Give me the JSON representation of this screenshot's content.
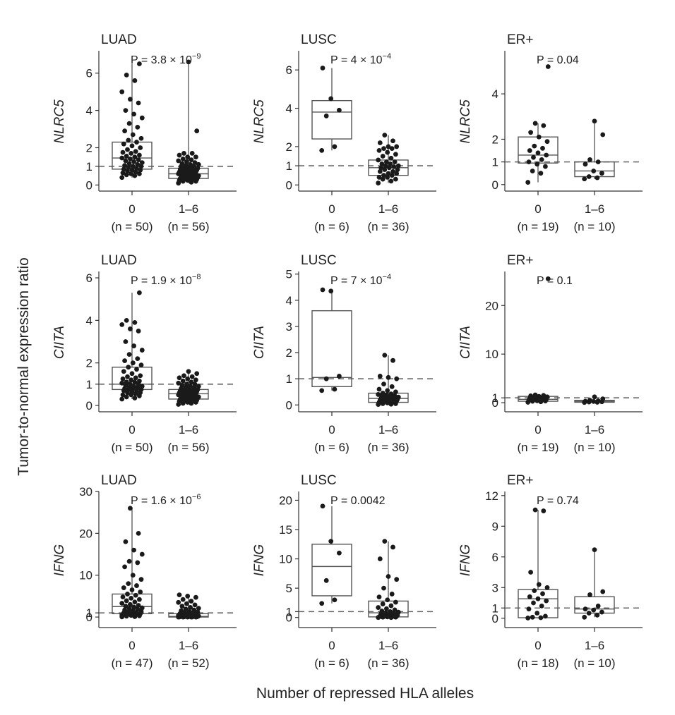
{
  "figure": {
    "y_label": "Tumor-to-normal expression ratio",
    "x_label": "Number of repressed HLA alleles"
  },
  "chart_data": [
    {
      "type": "box",
      "title": "LUAD",
      "ylabel": "NLRC5",
      "p_text": "P = 3.8 × 10",
      "p_exp": "−9",
      "ylim": [
        -0.1,
        7.2
      ],
      "yticks": [
        0,
        1,
        2,
        4,
        6
      ],
      "ref_line": 1,
      "categories": [
        "0",
        "1–6"
      ],
      "n_labels": [
        "(n = 50)",
        "(n = 56)"
      ],
      "boxes": [
        {
          "q1": 0.85,
          "median": 1.45,
          "q3": 2.3,
          "wlo": 0.4,
          "whi": 6.5
        },
        {
          "q1": 0.35,
          "median": 0.6,
          "q3": 0.9,
          "wlo": 0.1,
          "whi": 6.6
        }
      ],
      "points": [
        [
          0.4,
          0.5,
          0.55,
          0.6,
          0.6,
          0.65,
          0.7,
          0.75,
          0.8,
          0.8,
          0.85,
          0.9,
          0.95,
          1.0,
          1.0,
          1.05,
          1.1,
          1.15,
          1.2,
          1.25,
          1.3,
          1.35,
          1.4,
          1.45,
          1.5,
          1.55,
          1.6,
          1.7,
          1.75,
          1.8,
          1.9,
          2.0,
          2.1,
          2.2,
          2.3,
          2.4,
          2.5,
          2.7,
          2.9,
          3.1,
          3.3,
          3.6,
          3.8,
          4.0,
          4.4,
          4.6,
          5.0,
          5.6,
          5.9,
          6.5
        ],
        [
          0.1,
          0.15,
          0.2,
          0.2,
          0.25,
          0.25,
          0.3,
          0.3,
          0.3,
          0.35,
          0.35,
          0.4,
          0.4,
          0.4,
          0.45,
          0.45,
          0.5,
          0.5,
          0.5,
          0.55,
          0.55,
          0.6,
          0.6,
          0.6,
          0.65,
          0.65,
          0.7,
          0.7,
          0.7,
          0.75,
          0.75,
          0.8,
          0.8,
          0.85,
          0.85,
          0.9,
          0.9,
          0.95,
          1.0,
          1.0,
          1.05,
          1.1,
          1.1,
          1.15,
          1.2,
          1.25,
          1.3,
          1.35,
          1.4,
          1.5,
          1.5,
          1.6,
          1.7,
          1.7,
          2.9,
          6.6
        ]
      ]
    },
    {
      "type": "box",
      "title": "LUSC",
      "ylabel": "NLRC5",
      "p_text": "P = 4 × 10",
      "p_exp": "−4",
      "ylim": [
        -0.1,
        7.0
      ],
      "yticks": [
        0,
        1,
        2,
        4,
        6
      ],
      "ref_line": 1,
      "categories": [
        "0",
        "1–6"
      ],
      "n_labels": [
        "(n = 6)",
        "(n = 36)"
      ],
      "boxes": [
        {
          "q1": 2.4,
          "median": 3.8,
          "q3": 4.4,
          "wlo": 1.8,
          "whi": 6.1
        },
        {
          "q1": 0.5,
          "median": 0.9,
          "q3": 1.3,
          "wlo": 0.1,
          "whi": 2.6
        }
      ],
      "points": [
        [
          1.8,
          2.0,
          3.6,
          3.9,
          4.5,
          6.1
        ],
        [
          0.1,
          0.2,
          0.3,
          0.3,
          0.4,
          0.4,
          0.5,
          0.5,
          0.6,
          0.6,
          0.7,
          0.7,
          0.8,
          0.8,
          0.9,
          0.9,
          0.95,
          1.0,
          1.0,
          1.1,
          1.1,
          1.2,
          1.2,
          1.3,
          1.4,
          1.5,
          1.6,
          1.7,
          1.8,
          1.9,
          1.9,
          2.0,
          2.0,
          2.2,
          2.3,
          2.6
        ]
      ]
    },
    {
      "type": "box",
      "title": "ER+",
      "ylabel": "NLRC5",
      "p_text": "P = 0.04",
      "p_exp": "",
      "ylim": [
        -0.1,
        5.9
      ],
      "yticks": [
        0,
        1,
        2,
        4
      ],
      "ref_line": 1,
      "categories": [
        "0",
        "1–6"
      ],
      "n_labels": [
        "(n = 19)",
        "(n = 10)"
      ],
      "boxes": [
        {
          "q1": 0.95,
          "median": 1.3,
          "q3": 2.1,
          "wlo": 0.1,
          "whi": 2.7
        },
        {
          "q1": 0.35,
          "median": 0.6,
          "q3": 1.0,
          "wlo": 0.25,
          "whi": 2.8
        }
      ],
      "points": [
        [
          0.1,
          0.5,
          0.6,
          0.8,
          0.9,
          1.0,
          1.1,
          1.2,
          1.3,
          1.4,
          1.5,
          1.6,
          1.7,
          1.9,
          2.1,
          2.3,
          2.6,
          2.7,
          5.2
        ],
        [
          0.25,
          0.3,
          0.35,
          0.5,
          0.6,
          0.9,
          1.0,
          1.1,
          2.2,
          2.8
        ]
      ]
    },
    {
      "type": "box",
      "title": "LUAD",
      "ylabel": "CIITA",
      "p_text": "P = 1.9 × 10",
      "p_exp": "−8",
      "ylim": [
        -0.1,
        6.3
      ],
      "yticks": [
        0,
        1,
        2,
        4,
        6
      ],
      "ref_line": 1,
      "categories": [
        "0",
        "1–6"
      ],
      "n_labels": [
        "(n = 50)",
        "(n = 56)"
      ],
      "boxes": [
        {
          "q1": 0.75,
          "median": 1.0,
          "q3": 1.8,
          "wlo": 0.3,
          "whi": 5.3
        },
        {
          "q1": 0.3,
          "median": 0.55,
          "q3": 0.75,
          "wlo": 0.05,
          "whi": 1.6
        }
      ],
      "points": [
        [
          0.3,
          0.35,
          0.4,
          0.45,
          0.5,
          0.5,
          0.55,
          0.6,
          0.6,
          0.65,
          0.7,
          0.7,
          0.75,
          0.75,
          0.8,
          0.8,
          0.85,
          0.85,
          0.9,
          0.9,
          0.95,
          1.0,
          1.0,
          1.05,
          1.1,
          1.1,
          1.15,
          1.2,
          1.25,
          1.3,
          1.35,
          1.4,
          1.5,
          1.6,
          1.7,
          1.8,
          1.9,
          2.0,
          2.1,
          2.2,
          2.4,
          2.6,
          2.8,
          3.0,
          3.5,
          3.6,
          3.8,
          3.9,
          4.0,
          5.3
        ],
        [
          0.05,
          0.1,
          0.1,
          0.15,
          0.15,
          0.2,
          0.2,
          0.2,
          0.25,
          0.25,
          0.3,
          0.3,
          0.3,
          0.35,
          0.35,
          0.35,
          0.4,
          0.4,
          0.4,
          0.45,
          0.45,
          0.5,
          0.5,
          0.5,
          0.55,
          0.55,
          0.55,
          0.6,
          0.6,
          0.6,
          0.65,
          0.65,
          0.7,
          0.7,
          0.7,
          0.75,
          0.75,
          0.8,
          0.8,
          0.85,
          0.85,
          0.9,
          0.9,
          0.95,
          1.0,
          1.0,
          1.05,
          1.1,
          1.15,
          1.2,
          1.25,
          1.3,
          1.35,
          1.4,
          1.5,
          1.6
        ]
      ]
    },
    {
      "type": "box",
      "title": "LUSC",
      "ylabel": "CIITA",
      "p_text": "P = 7 × 10",
      "p_exp": "−4",
      "ylim": [
        -0.1,
        5.1
      ],
      "yticks": [
        0,
        1,
        2,
        3,
        4,
        5
      ],
      "ref_line": 1,
      "categories": [
        "0",
        "1–6"
      ],
      "n_labels": [
        "(n = 6)",
        "(n = 36)"
      ],
      "boxes": [
        {
          "q1": 0.7,
          "median": 1.05,
          "q3": 3.6,
          "wlo": 0.55,
          "whi": 4.4
        },
        {
          "q1": 0.1,
          "median": 0.25,
          "q3": 0.45,
          "wlo": 0.02,
          "whi": 1.9
        }
      ],
      "points": [
        [
          0.55,
          0.6,
          1.0,
          1.1,
          4.35,
          4.4
        ],
        [
          0.02,
          0.03,
          0.05,
          0.05,
          0.08,
          0.1,
          0.1,
          0.12,
          0.15,
          0.15,
          0.18,
          0.2,
          0.2,
          0.22,
          0.25,
          0.25,
          0.28,
          0.3,
          0.3,
          0.32,
          0.35,
          0.35,
          0.38,
          0.4,
          0.42,
          0.45,
          0.5,
          0.55,
          0.6,
          0.7,
          0.8,
          1.0,
          1.05,
          1.1,
          1.7,
          1.9
        ]
      ]
    },
    {
      "type": "box",
      "title": "ER+",
      "ylabel": "CIITA",
      "p_text": "P = 0.1",
      "p_exp": "",
      "ylim": [
        -1,
        27
      ],
      "yticks": [
        0,
        1,
        10,
        20
      ],
      "ytick_labels": [
        "0",
        "1",
        "10",
        "20"
      ],
      "ref_line": 1,
      "categories": [
        "0",
        "1–6"
      ],
      "n_labels": [
        "(n = 19)",
        "(n = 10)"
      ],
      "boxes": [
        {
          "q1": 0.3,
          "median": 0.7,
          "q3": 1.3,
          "wlo": 0.1,
          "whi": 1.6
        },
        {
          "q1": 0.1,
          "median": 0.3,
          "q3": 0.5,
          "wlo": 0.05,
          "whi": 1.2
        }
      ],
      "points": [
        [
          0.1,
          0.2,
          0.3,
          0.35,
          0.4,
          0.5,
          0.6,
          0.7,
          0.7,
          0.8,
          0.9,
          1.0,
          1.1,
          1.2,
          1.3,
          1.4,
          1.5,
          1.6,
          25.5
        ],
        [
          0.05,
          0.1,
          0.15,
          0.2,
          0.25,
          0.3,
          0.4,
          0.5,
          0.8,
          1.2
        ]
      ]
    },
    {
      "type": "box",
      "title": "LUAD",
      "ylabel": "IFNG",
      "p_text": "P = 1.6 × 10",
      "p_exp": "−6",
      "ylim": [
        -1.5,
        30
      ],
      "yticks": [
        0,
        1,
        10,
        20,
        30
      ],
      "ref_line": 1,
      "categories": [
        "0",
        "1–6"
      ],
      "n_labels": [
        "(n = 47)",
        "(n = 52)"
      ],
      "boxes": [
        {
          "q1": 0.8,
          "median": 2.5,
          "q3": 5.5,
          "wlo": 0.05,
          "whi": 26
        },
        {
          "q1": 0.0,
          "median": 0.15,
          "q3": 0.8,
          "wlo": 0.0,
          "whi": 5.3
        }
      ],
      "points": [
        [
          0.05,
          0.1,
          0.2,
          0.3,
          0.4,
          0.5,
          0.6,
          0.7,
          0.8,
          0.9,
          1.0,
          1.1,
          1.2,
          1.4,
          1.5,
          1.7,
          1.9,
          2.0,
          2.2,
          2.4,
          2.6,
          2.8,
          3.0,
          3.3,
          3.6,
          3.9,
          4.2,
          4.5,
          4.8,
          5.2,
          5.5,
          6.0,
          6.5,
          7.0,
          7.5,
          8.0,
          9.0,
          10.0,
          12.0,
          13.0,
          13.3,
          15.0,
          16.0,
          18.0,
          20.0,
          26.0,
          0.5
        ],
        [
          0.0,
          0.0,
          0.0,
          0.0,
          0.0,
          0.02,
          0.03,
          0.05,
          0.05,
          0.08,
          0.1,
          0.1,
          0.12,
          0.15,
          0.15,
          0.18,
          0.2,
          0.2,
          0.25,
          0.3,
          0.3,
          0.35,
          0.4,
          0.4,
          0.45,
          0.5,
          0.5,
          0.6,
          0.6,
          0.7,
          0.7,
          0.8,
          0.8,
          0.9,
          1.0,
          1.1,
          1.2,
          1.3,
          1.5,
          1.7,
          1.9,
          2.1,
          2.3,
          2.6,
          2.9,
          3.2,
          3.5,
          3.8,
          4.2,
          4.7,
          5.0,
          5.3
        ]
      ]
    },
    {
      "type": "box",
      "title": "LUSC",
      "ylabel": "IFNG",
      "p_text": "P = 0.0042",
      "p_exp": "",
      "ylim": [
        -1,
        21.5
      ],
      "yticks": [
        0,
        1,
        5,
        10,
        15,
        20
      ],
      "ref_line": 1,
      "categories": [
        "0",
        "1–6"
      ],
      "n_labels": [
        "(n = 6)",
        "(n = 36)"
      ],
      "boxes": [
        {
          "q1": 3.7,
          "median": 8.7,
          "q3": 12.5,
          "wlo": 2.4,
          "whi": 19
        },
        {
          "q1": 0.1,
          "median": 0.8,
          "q3": 2.8,
          "wlo": 0.0,
          "whi": 13
        }
      ],
      "points": [
        [
          2.4,
          3.0,
          6.3,
          11.0,
          13.0,
          19.0
        ],
        [
          0.0,
          0.0,
          0.05,
          0.05,
          0.1,
          0.1,
          0.1,
          0.15,
          0.2,
          0.2,
          0.25,
          0.3,
          0.35,
          0.4,
          0.5,
          0.6,
          0.7,
          0.8,
          0.9,
          1.0,
          1.1,
          1.3,
          1.5,
          1.7,
          2.0,
          2.3,
          2.6,
          3.0,
          3.5,
          4.0,
          5.0,
          6.5,
          7.0,
          10.0,
          12.0,
          13.0
        ]
      ]
    },
    {
      "type": "box",
      "title": "ER+",
      "ylabel": "IFNG",
      "p_text": "P = 0.74",
      "p_exp": "",
      "ylim": [
        -0.5,
        12.4
      ],
      "yticks": [
        0,
        1,
        3,
        6,
        9,
        12
      ],
      "ref_line": 1,
      "categories": [
        "0",
        "1–6"
      ],
      "n_labels": [
        "(n = 18)",
        "(n = 10)"
      ],
      "boxes": [
        {
          "q1": 0.05,
          "median": 1.9,
          "q3": 2.8,
          "wlo": 0.02,
          "whi": 10.6
        },
        {
          "q1": 0.5,
          "median": 0.9,
          "q3": 2.1,
          "wlo": 0.1,
          "whi": 6.7
        }
      ],
      "points": [
        [
          0.02,
          0.05,
          0.1,
          0.2,
          0.5,
          0.9,
          1.2,
          1.5,
          1.7,
          1.9,
          2.1,
          2.4,
          2.7,
          3.0,
          3.3,
          4.5,
          10.5,
          10.6
        ],
        [
          0.1,
          0.3,
          0.5,
          0.6,
          0.8,
          0.9,
          1.2,
          2.3,
          2.6,
          6.7
        ]
      ]
    }
  ]
}
